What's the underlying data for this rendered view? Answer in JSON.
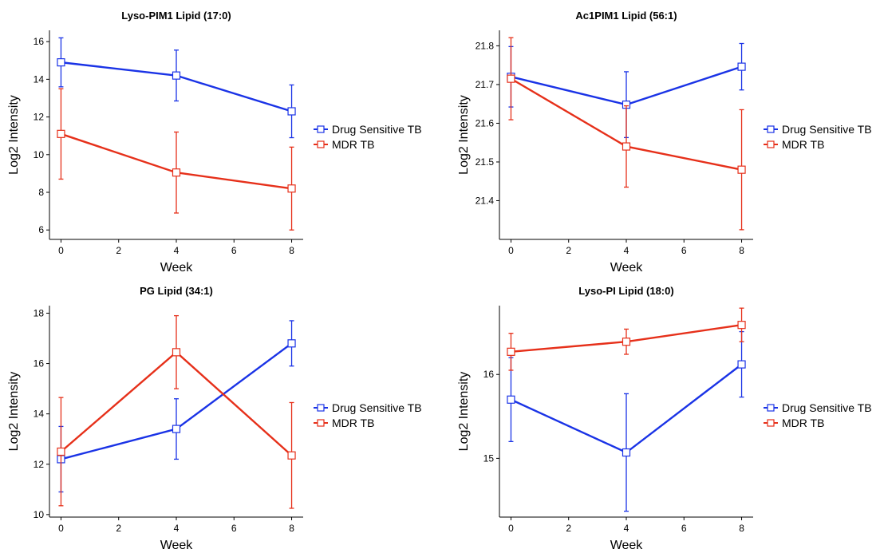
{
  "chart_data": [
    {
      "type": "line",
      "title": "Lyso-PIM1 Lipid (17:0)",
      "xlabel": "Week",
      "ylabel": "Log2 Intensity",
      "x": [
        0,
        4,
        8
      ],
      "xticks": [
        0,
        2,
        4,
        6,
        8
      ],
      "yticks": [
        6,
        8,
        10,
        12,
        14,
        16
      ],
      "xlim": [
        -0.4,
        8.4
      ],
      "ylim": [
        5.5,
        16.6
      ],
      "legend_position": "right",
      "series": [
        {
          "name": "Drug Sensitive TB",
          "color": "#1a33e6",
          "values": [
            14.9,
            14.2,
            12.3
          ],
          "err": [
            1.3,
            1.35,
            1.4
          ]
        },
        {
          "name": "MDR TB",
          "color": "#e6301a",
          "values": [
            11.1,
            9.05,
            8.2
          ],
          "err": [
            2.4,
            2.15,
            2.2
          ]
        }
      ]
    },
    {
      "type": "line",
      "title": "Ac1PIM1 Lipid (56:1)",
      "xlabel": "Week",
      "ylabel": "Log2 Intensity",
      "x": [
        0,
        4,
        8
      ],
      "xticks": [
        0,
        2,
        4,
        6,
        8
      ],
      "yticks": [
        21.4,
        21.5,
        21.6,
        21.7,
        21.8
      ],
      "xlim": [
        -0.4,
        8.4
      ],
      "ylim": [
        21.3,
        21.84
      ],
      "legend_position": "right",
      "series": [
        {
          "name": "Drug Sensitive TB",
          "color": "#1a33e6",
          "values": [
            21.72,
            21.648,
            21.746
          ],
          "err": [
            0.078,
            0.085,
            0.06
          ]
        },
        {
          "name": "MDR TB",
          "color": "#e6301a",
          "values": [
            21.715,
            21.54,
            21.48
          ],
          "err": [
            0.106,
            0.105,
            0.155
          ]
        }
      ]
    },
    {
      "type": "line",
      "title": "PG Lipid (34:1)",
      "xlabel": "Week",
      "ylabel": "Log2 Intensity",
      "x": [
        0,
        4,
        8
      ],
      "xticks": [
        0,
        2,
        4,
        6,
        8
      ],
      "yticks": [
        10,
        12,
        14,
        16,
        18
      ],
      "xlim": [
        -0.4,
        8.4
      ],
      "ylim": [
        9.9,
        18.3
      ],
      "legend_position": "right",
      "series": [
        {
          "name": "Drug Sensitive TB",
          "color": "#1a33e6",
          "values": [
            12.2,
            13.4,
            16.8
          ],
          "err": [
            1.3,
            1.2,
            0.9
          ]
        },
        {
          "name": "MDR TB",
          "color": "#e6301a",
          "values": [
            12.5,
            16.45,
            12.35
          ],
          "err": [
            2.15,
            1.45,
            2.1
          ]
        }
      ]
    },
    {
      "type": "line",
      "title": "Lyso-PI Lipid (18:0)",
      "xlabel": "Week",
      "ylabel": "Log2 Intensity",
      "x": [
        0,
        4,
        8
      ],
      "xticks": [
        0,
        2,
        4,
        6,
        8
      ],
      "yticks": [
        15,
        16
      ],
      "xlim": [
        -0.4,
        8.4
      ],
      "ylim": [
        14.3,
        16.82
      ],
      "legend_position": "right",
      "series": [
        {
          "name": "Drug Sensitive TB",
          "color": "#1a33e6",
          "values": [
            15.7,
            15.07,
            16.12
          ],
          "err": [
            0.5,
            0.7,
            0.39
          ]
        },
        {
          "name": "MDR TB",
          "color": "#e6301a",
          "values": [
            16.27,
            16.39,
            16.59
          ],
          "err": [
            0.22,
            0.15,
            0.2
          ]
        }
      ]
    }
  ]
}
